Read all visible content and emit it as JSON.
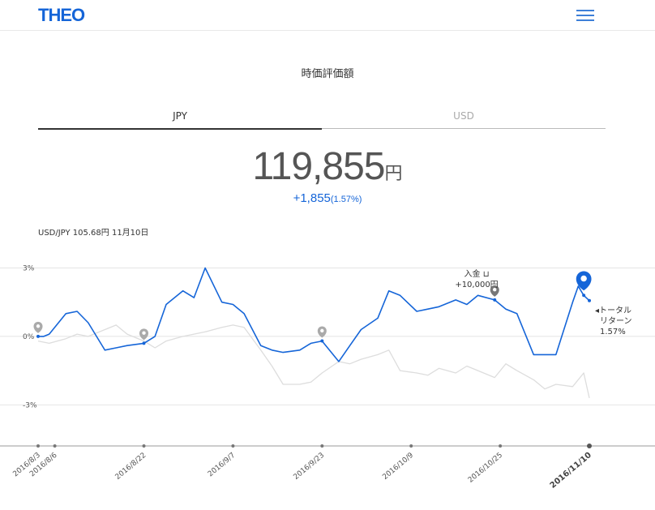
{
  "header": {
    "logo": "THEO"
  },
  "page": {
    "title": "時価評価額"
  },
  "tabs": [
    {
      "label": "JPY"
    },
    {
      "label": "USD"
    }
  ],
  "valuation": {
    "amount": "119,855",
    "unit": "円",
    "change": "+1,855",
    "change_pct": "(1.57%)"
  },
  "fx_rate": "USD/JPY 105.68円 11月10日",
  "annotations": {
    "deposit_label": "入金",
    "deposit_amount": "+10,000円",
    "total_return_label_1": "トータル",
    "total_return_label_2": "リターン",
    "total_return_value": "1.57%"
  },
  "colors": {
    "accent": "#1565d8",
    "benchmark": "#dddddd"
  },
  "chart_data": {
    "type": "line",
    "y_ticks": [
      "3%",
      "0%",
      "-3%"
    ],
    "ylim": [
      -4.8,
      3.8
    ],
    "x_ticks": [
      "2016/8/3",
      "2016/8/6",
      "2016/8/22",
      "2016/9/7",
      "2016/9/23",
      "2016/10/9",
      "2016/10/25",
      "2016/11/10"
    ],
    "grid": true,
    "series": [
      {
        "x": [
          "2016/8/3",
          "2016/8/4",
          "2016/8/5",
          "2016/8/8",
          "2016/8/10",
          "2016/8/12",
          "2016/8/15",
          "2016/8/17",
          "2016/8/19",
          "2016/8/22",
          "2016/8/24",
          "2016/8/26",
          "2016/8/29",
          "2016/8/31",
          "2016/9/2",
          "2016/9/5",
          "2016/9/7",
          "2016/9/9",
          "2016/9/12",
          "2016/9/14",
          "2016/9/16",
          "2016/9/19",
          "2016/9/21",
          "2016/9/23",
          "2016/9/26",
          "2016/9/28",
          "2016/9/30",
          "2016/10/3",
          "2016/10/5",
          "2016/10/7",
          "2016/10/10",
          "2016/10/12",
          "2016/10/14",
          "2016/10/17",
          "2016/10/19",
          "2016/10/21",
          "2016/10/24",
          "2016/10/26",
          "2016/10/28",
          "2016/10/31",
          "2016/11/2",
          "2016/11/4",
          "2016/11/7",
          "2016/11/8",
          "2016/11/9",
          "2016/11/10"
        ],
        "values": [
          0.0,
          0.0,
          0.1,
          1.0,
          1.1,
          0.6,
          -0.6,
          -0.5,
          -0.4,
          -0.3,
          0.0,
          1.4,
          2.0,
          1.7,
          3.0,
          1.5,
          1.4,
          1.0,
          -0.4,
          -0.6,
          -0.7,
          -0.6,
          -0.3,
          -0.2,
          -1.1,
          -0.4,
          0.3,
          0.8,
          2.0,
          1.8,
          1.1,
          1.2,
          1.3,
          1.6,
          1.4,
          1.8,
          1.6,
          1.2,
          1.0,
          -0.8,
          -0.8,
          -0.8,
          1.5,
          2.2,
          1.8,
          1.57
        ]
      },
      {
        "x": [
          "2016/8/3",
          "2016/8/5",
          "2016/8/8",
          "2016/8/10",
          "2016/8/12",
          "2016/8/15",
          "2016/8/17",
          "2016/8/19",
          "2016/8/22",
          "2016/8/24",
          "2016/8/26",
          "2016/8/29",
          "2016/8/31",
          "2016/9/2",
          "2016/9/5",
          "2016/9/7",
          "2016/9/9",
          "2016/9/12",
          "2016/9/14",
          "2016/9/16",
          "2016/9/19",
          "2016/9/21",
          "2016/9/23",
          "2016/9/26",
          "2016/9/28",
          "2016/9/30",
          "2016/10/3",
          "2016/10/5",
          "2016/10/7",
          "2016/10/10",
          "2016/10/12",
          "2016/10/14",
          "2016/10/17",
          "2016/10/19",
          "2016/10/21",
          "2016/10/24",
          "2016/10/26",
          "2016/10/28",
          "2016/10/31",
          "2016/11/2",
          "2016/11/4",
          "2016/11/7",
          "2016/11/9",
          "2016/11/10"
        ],
        "values": [
          -0.2,
          -0.3,
          -0.1,
          0.1,
          0.0,
          0.3,
          0.5,
          0.1,
          -0.2,
          -0.5,
          -0.2,
          0.0,
          0.1,
          0.2,
          0.4,
          0.5,
          0.4,
          -0.6,
          -1.3,
          -2.1,
          -2.1,
          -2.0,
          -1.6,
          -1.1,
          -1.2,
          -1.0,
          -0.8,
          -0.6,
          -1.5,
          -1.6,
          -1.7,
          -1.4,
          -1.6,
          -1.3,
          -1.5,
          -1.8,
          -1.2,
          -1.5,
          -1.9,
          -2.3,
          -2.1,
          -2.2,
          -1.6,
          -2.7
        ]
      }
    ]
  }
}
